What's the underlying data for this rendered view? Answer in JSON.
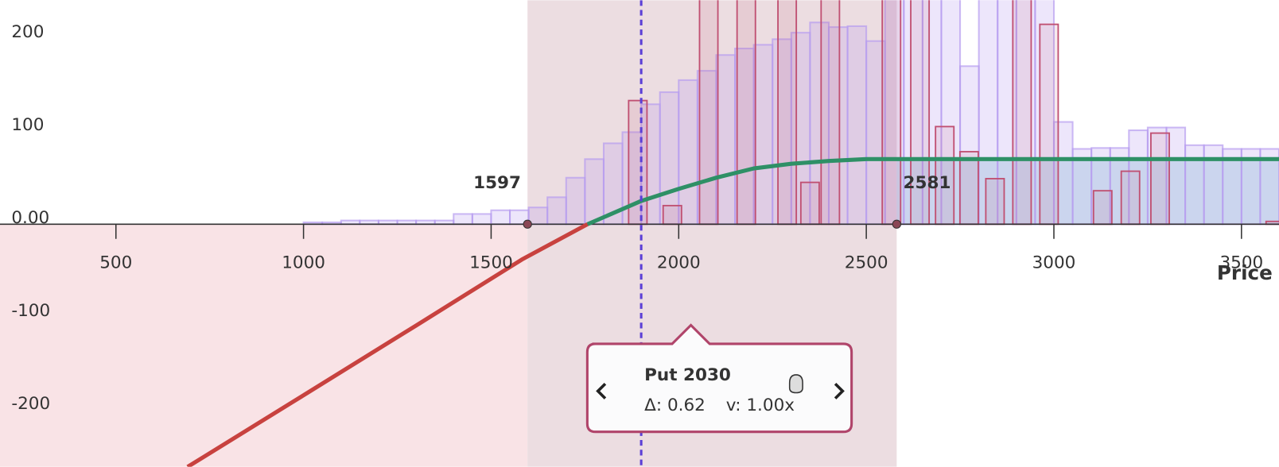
{
  "chart_data": {
    "type": "line",
    "x_label": "Price",
    "xlim": [
      191,
      3600
    ],
    "ylim": [
      241,
      -261
    ],
    "xticks": [
      500,
      1000,
      1500,
      2000,
      2500,
      3000,
      3500
    ],
    "yticks": [
      200,
      100,
      {
        "value": 0,
        "label": "0.00"
      },
      -100,
      -200
    ],
    "x": [
      691,
      1000,
      1300,
      1582,
      1757,
      1900,
      2000,
      2100,
      2200,
      2300,
      2400,
      2500,
      2581,
      3000,
      3600
    ],
    "series": [
      {
        "color": "#c8423f",
        "values": [
          -261,
          -184,
          -109,
          -38,
          0,
          null,
          null,
          null,
          null,
          null,
          null,
          null,
          null,
          null,
          null
        ]
      },
      {
        "color": "#2e9066",
        "values": [
          null,
          null,
          null,
          null,
          0,
          25,
          38,
          50,
          60,
          65,
          68,
          70,
          70,
          70,
          70
        ]
      }
    ],
    "histogram": {
      "color": "#b79cf0",
      "bins": [
        1000,
        1050,
        1100,
        1150,
        1200,
        1250,
        1300,
        1350,
        1400,
        1450,
        1500,
        1550,
        1600,
        1650,
        1700,
        1750,
        1800,
        1850,
        1900,
        1950,
        2000,
        2050,
        2100,
        2150,
        2200,
        2250,
        2300,
        2350,
        2400,
        2450,
        2500,
        2550,
        2600,
        2650,
        2700,
        2750,
        2800,
        2850,
        2900,
        2950,
        3000,
        3050,
        3100,
        3150,
        3200,
        3250,
        3300,
        3350,
        3400,
        3450,
        3500,
        3550,
        3600
      ],
      "counts": [
        2,
        2,
        4,
        4,
        4,
        4,
        4,
        4,
        11,
        11,
        15,
        15,
        18,
        29,
        50,
        70,
        87,
        99,
        129,
        142,
        155,
        165,
        182,
        189,
        193,
        199,
        206,
        217,
        212,
        213,
        197,
        250,
        260,
        260,
        260,
        170,
        250,
        250,
        250,
        250,
        110,
        81,
        82,
        82,
        101,
        104,
        104,
        85,
        85,
        81,
        81,
        81
      ]
    },
    "bars": {
      "color": "#c05072",
      "x": [
        1891,
        1983,
        2080,
        2180,
        2289,
        2350,
        2404,
        2567,
        2643,
        2709,
        2774,
        2843,
        2915,
        2987,
        3130,
        3204,
        3283,
        3590
      ],
      "values": [
        133,
        20,
        260,
        260,
        260,
        45,
        260,
        260,
        260,
        105,
        78,
        49,
        260,
        215,
        36,
        57,
        98,
        3
      ]
    },
    "breakevens": [
      1597,
      2581
    ],
    "spot": 1900
  },
  "tooltip": {
    "title": "Put 2030",
    "delta": "Δ: 0.62",
    "multiplier": "v: 1.00x"
  }
}
